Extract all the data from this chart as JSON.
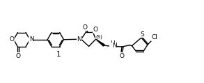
{
  "bg_color": "#ffffff",
  "line_color": "#000000",
  "line_width": 1.0,
  "font_size_label": 6.5,
  "font_size_stereo": 5.0,
  "font_size_number": 7.5,
  "figsize": [
    2.93,
    1.19
  ],
  "dpi": 100,
  "xlim": [
    0,
    10.5
  ],
  "ylim": [
    0,
    4.0
  ]
}
